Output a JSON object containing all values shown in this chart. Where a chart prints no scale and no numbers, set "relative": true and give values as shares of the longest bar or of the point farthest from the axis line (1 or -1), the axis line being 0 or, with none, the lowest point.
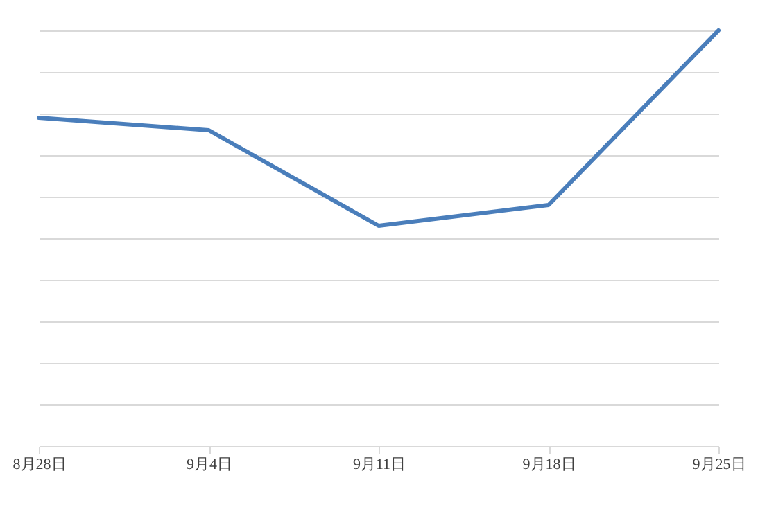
{
  "chart_data": {
    "type": "line",
    "relative": true,
    "grid": "y",
    "marker": "none",
    "line_style": "solid",
    "categories": [
      "8月28日",
      "9月4日",
      "9月11日",
      "9月18日",
      "9月25日"
    ],
    "series": [
      {
        "color": "#4a7ebb",
        "values": [
          0.79,
          0.76,
          0.53,
          0.58,
          1
        ]
      }
    ]
  }
}
